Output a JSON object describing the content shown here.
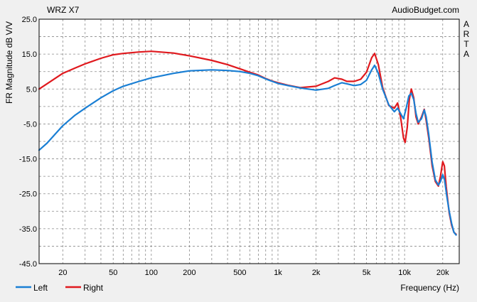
{
  "chart_data": {
    "type": "line",
    "title": "WRZ X7",
    "watermark": "AudioBudget.com",
    "side_label": "ARTA",
    "ylabel": "FR Magnitude dB V/V",
    "xlabel": "Frequency (Hz)",
    "x_scale": "log",
    "xlim": [
      13,
      27000
    ],
    "ylim": [
      -45,
      25
    ],
    "grid": true,
    "background": "#ffffff",
    "frame_background": "#f0f0f0",
    "y_ticks": [
      25,
      15,
      5,
      -5,
      -15,
      -25,
      -35,
      -45
    ],
    "y_tick_labels": [
      "25.0",
      "15.0",
      "5.0",
      "-5.0",
      "-15.0",
      "-25.0",
      "-35.0",
      "-45.0"
    ],
    "x_ticks": [
      20,
      50,
      100,
      200,
      500,
      1000,
      2000,
      5000,
      10000,
      20000
    ],
    "x_tick_labels": [
      "20",
      "50",
      "100",
      "200",
      "500",
      "1k",
      "2k",
      "5k",
      "10k",
      "20k"
    ],
    "legend_position": "bottom-left",
    "series": [
      {
        "name": "Left",
        "color": "#1a7fd4",
        "points": [
          [
            13,
            -12.5
          ],
          [
            15,
            -10.5
          ],
          [
            20,
            -5.5
          ],
          [
            25,
            -2.5
          ],
          [
            30,
            -0.5
          ],
          [
            40,
            2.5
          ],
          [
            50,
            4.5
          ],
          [
            60,
            5.8
          ],
          [
            80,
            7.2
          ],
          [
            100,
            8.2
          ],
          [
            150,
            9.5
          ],
          [
            200,
            10.2
          ],
          [
            300,
            10.5
          ],
          [
            400,
            10.3
          ],
          [
            500,
            10
          ],
          [
            600,
            9.5
          ],
          [
            700,
            8.8
          ],
          [
            800,
            7.9
          ],
          [
            900,
            7.2
          ],
          [
            1000,
            6.6
          ],
          [
            1200,
            6
          ],
          [
            1500,
            5.3
          ],
          [
            2000,
            4.7
          ],
          [
            2500,
            5.2
          ],
          [
            2800,
            6
          ],
          [
            3200,
            6.8
          ],
          [
            3500,
            6.5
          ],
          [
            4000,
            6
          ],
          [
            4500,
            6.3
          ],
          [
            5000,
            7.5
          ],
          [
            5500,
            10.5
          ],
          [
            5800,
            11.8
          ],
          [
            6200,
            9.5
          ],
          [
            6700,
            5
          ],
          [
            7500,
            0.5
          ],
          [
            8300,
            -1.5
          ],
          [
            8800,
            -0.5
          ],
          [
            9300,
            -2
          ],
          [
            9800,
            -3.5
          ],
          [
            10300,
            -0.5
          ],
          [
            10800,
            3
          ],
          [
            11300,
            3.8
          ],
          [
            11800,
            2
          ],
          [
            12300,
            -2
          ],
          [
            12800,
            -4.5
          ],
          [
            13600,
            -3.5
          ],
          [
            14300,
            -1
          ],
          [
            14800,
            -3
          ],
          [
            15500,
            -8
          ],
          [
            16500,
            -16
          ],
          [
            17500,
            -21
          ],
          [
            18500,
            -22.5
          ],
          [
            19200,
            -21.5
          ],
          [
            20000,
            -19.5
          ],
          [
            20700,
            -21
          ],
          [
            21500,
            -25.5
          ],
          [
            22500,
            -30
          ],
          [
            23500,
            -33.5
          ],
          [
            24500,
            -36
          ],
          [
            25500,
            -36.8
          ]
        ]
      },
      {
        "name": "Right",
        "color": "#e0191e",
        "points": [
          [
            13,
            5
          ],
          [
            15,
            6.5
          ],
          [
            20,
            9.5
          ],
          [
            25,
            11
          ],
          [
            30,
            12.2
          ],
          [
            40,
            13.8
          ],
          [
            50,
            14.8
          ],
          [
            60,
            15.2
          ],
          [
            80,
            15.6
          ],
          [
            100,
            15.8
          ],
          [
            150,
            15.3
          ],
          [
            200,
            14.5
          ],
          [
            300,
            13.2
          ],
          [
            400,
            12
          ],
          [
            500,
            10.8
          ],
          [
            600,
            9.8
          ],
          [
            700,
            9
          ],
          [
            800,
            8
          ],
          [
            900,
            7.3
          ],
          [
            1000,
            6.8
          ],
          [
            1200,
            6.1
          ],
          [
            1500,
            5.4
          ],
          [
            2000,
            5.8
          ],
          [
            2500,
            7.2
          ],
          [
            2800,
            8.2
          ],
          [
            3200,
            7.8
          ],
          [
            3500,
            7.2
          ],
          [
            4000,
            7.2
          ],
          [
            4500,
            7.8
          ],
          [
            5000,
            9.8
          ],
          [
            5500,
            14
          ],
          [
            5800,
            15.2
          ],
          [
            6200,
            12
          ],
          [
            6700,
            5.5
          ],
          [
            7500,
            0.3
          ],
          [
            8300,
            -0.5
          ],
          [
            8800,
            1
          ],
          [
            9300,
            -3
          ],
          [
            9800,
            -9
          ],
          [
            10100,
            -10.3
          ],
          [
            10500,
            -6
          ],
          [
            10900,
            2
          ],
          [
            11300,
            5
          ],
          [
            11800,
            2.5
          ],
          [
            12300,
            -3
          ],
          [
            12800,
            -5
          ],
          [
            13600,
            -3
          ],
          [
            14300,
            -0.8
          ],
          [
            14800,
            -4
          ],
          [
            15500,
            -9
          ],
          [
            16500,
            -17
          ],
          [
            17500,
            -21.5
          ],
          [
            18500,
            -22.8
          ],
          [
            19200,
            -20
          ],
          [
            20000,
            -15.8
          ],
          [
            20600,
            -17
          ],
          [
            21300,
            -23
          ],
          [
            22500,
            -30.5
          ],
          [
            23500,
            -34
          ],
          [
            24500,
            -36
          ],
          [
            25500,
            -36.6
          ]
        ]
      }
    ]
  }
}
